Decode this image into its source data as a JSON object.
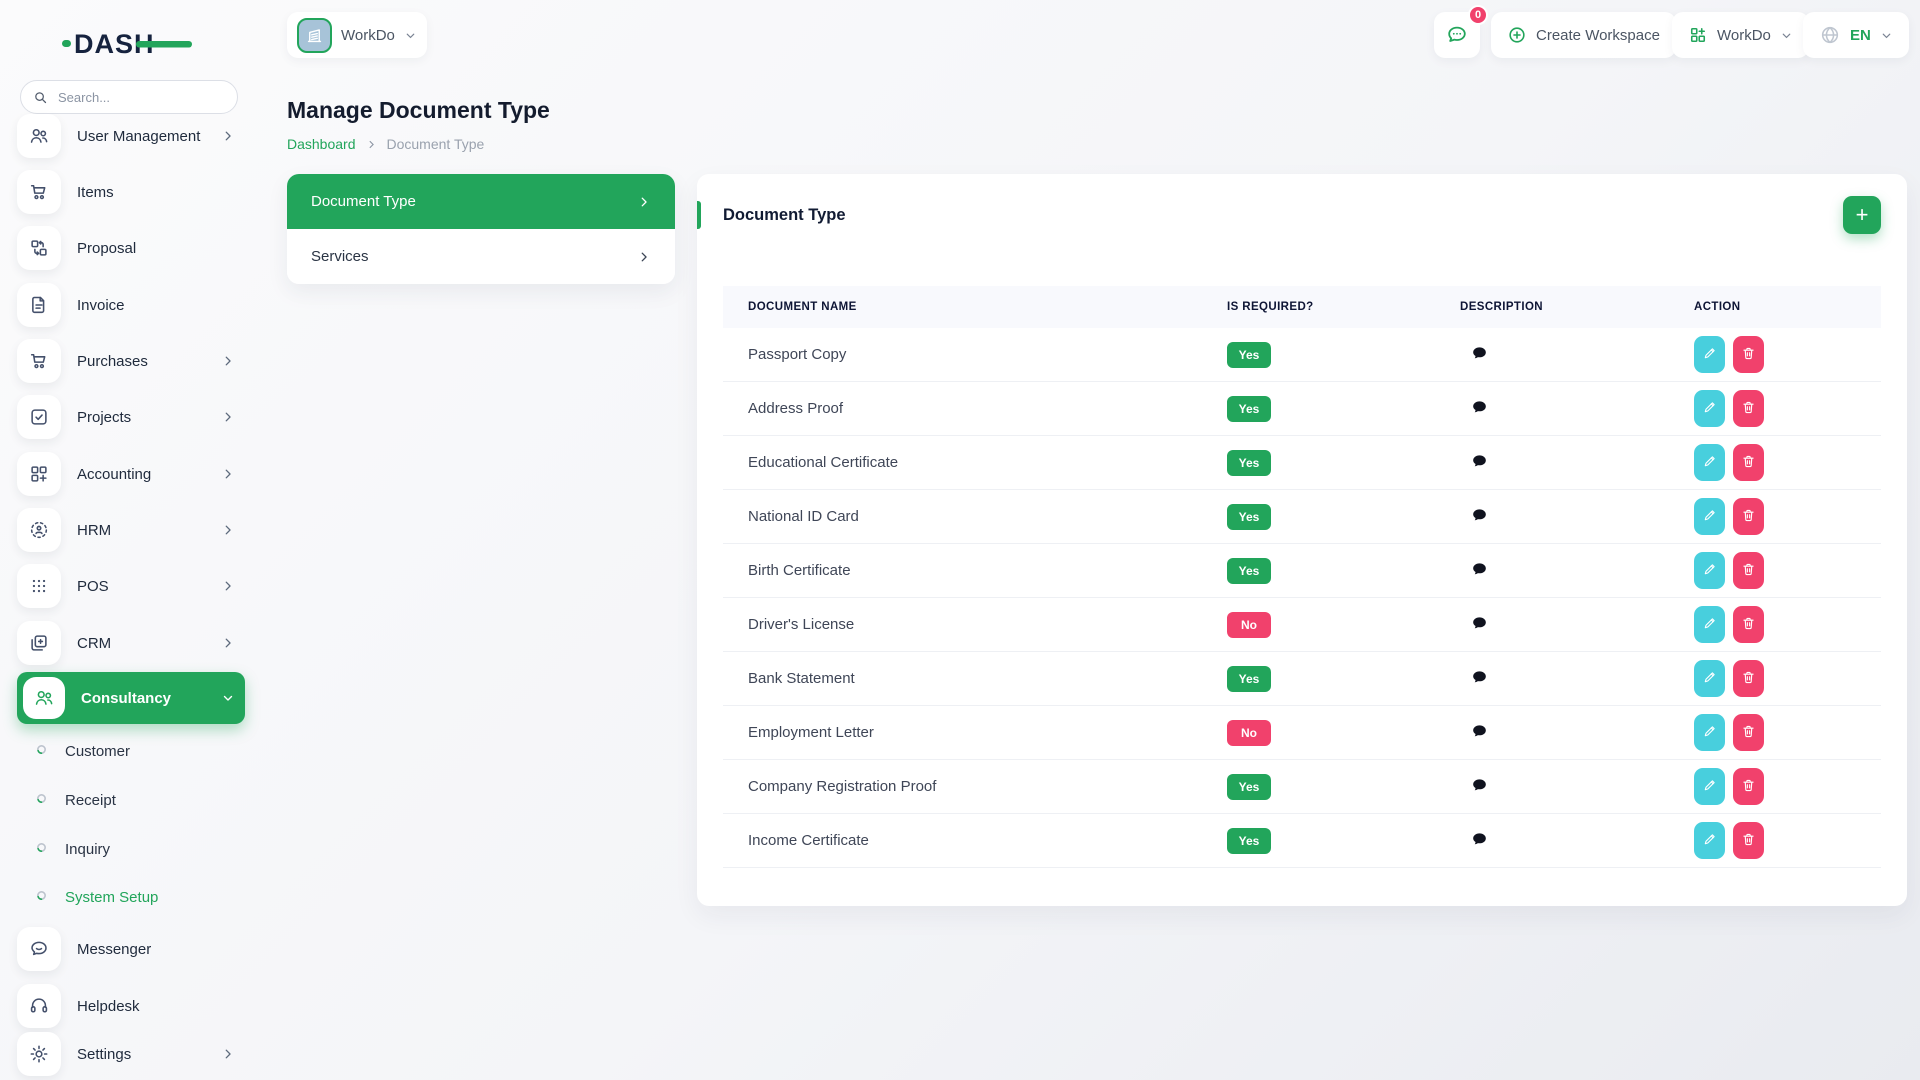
{
  "colors": {
    "green": "#22a55b",
    "pink": "#f1416c",
    "teal": "#48cfdd",
    "dark": "#141c2e"
  },
  "brand": {
    "name": "DASH"
  },
  "topbar": {
    "workspace_selector": {
      "label": "WorkDo",
      "icon": "building-icon"
    },
    "chat": {
      "badge": "0",
      "icon": "chat-bubble-icon"
    },
    "create_workspace_label": "Create Workspace",
    "workdo_menu_label": "WorkDo",
    "language": {
      "label": "EN",
      "icon": "globe-icon"
    }
  },
  "page": {
    "title": "Manage Document Type",
    "breadcrumb": {
      "home": "Dashboard",
      "current": "Document Type"
    }
  },
  "sidebar": {
    "search_placeholder": "Search...",
    "items": [
      {
        "label": "User Management",
        "icon": "users-icon",
        "chevron": "right"
      },
      {
        "label": "Items",
        "icon": "cart-icon",
        "chevron": ""
      },
      {
        "label": "Proposal",
        "icon": "proposal-icon",
        "chevron": ""
      },
      {
        "label": "Invoice",
        "icon": "invoice-icon",
        "chevron": ""
      },
      {
        "label": "Purchases",
        "icon": "cart-icon",
        "chevron": "right"
      },
      {
        "label": "Projects",
        "icon": "projects-icon",
        "chevron": "right"
      },
      {
        "label": "Accounting",
        "icon": "accounting-icon",
        "chevron": "right"
      },
      {
        "label": "HRM",
        "icon": "hrm-icon",
        "chevron": "right"
      },
      {
        "label": "POS",
        "icon": "pos-icon",
        "chevron": "right"
      },
      {
        "label": "CRM",
        "icon": "crm-icon",
        "chevron": "right"
      },
      {
        "label": "Consultancy",
        "icon": "consultancy-icon",
        "chevron": "down",
        "active": true
      },
      {
        "label": "Customer",
        "type": "sub"
      },
      {
        "label": "Receipt",
        "type": "sub"
      },
      {
        "label": "Inquiry",
        "type": "sub"
      },
      {
        "label": "System Setup",
        "type": "sub",
        "active": true
      },
      {
        "label": "Messenger",
        "icon": "messenger-icon",
        "chevron": ""
      },
      {
        "label": "Helpdesk",
        "icon": "helpdesk-icon",
        "chevron": ""
      },
      {
        "label": "Settings",
        "icon": "gear-icon",
        "chevron": "right"
      }
    ]
  },
  "submenu_card": {
    "items": [
      {
        "label": "Document Type",
        "active": true
      },
      {
        "label": "Services",
        "active": false
      }
    ]
  },
  "table_card": {
    "title": "Document Type",
    "add_button_label": "+",
    "columns": [
      "DOCUMENT NAME",
      "IS REQUIRED?",
      "DESCRIPTION",
      "ACTION"
    ],
    "rows": [
      {
        "name": "Passport Copy",
        "required": "Yes"
      },
      {
        "name": "Address Proof",
        "required": "Yes"
      },
      {
        "name": "Educational Certificate",
        "required": "Yes"
      },
      {
        "name": "National ID Card",
        "required": "Yes"
      },
      {
        "name": "Birth Certificate",
        "required": "Yes"
      },
      {
        "name": "Driver's License",
        "required": "No"
      },
      {
        "name": "Bank Statement",
        "required": "Yes"
      },
      {
        "name": "Employment Letter",
        "required": "No"
      },
      {
        "name": "Company Registration Proof",
        "required": "Yes"
      },
      {
        "name": "Income Certificate",
        "required": "Yes"
      }
    ]
  }
}
